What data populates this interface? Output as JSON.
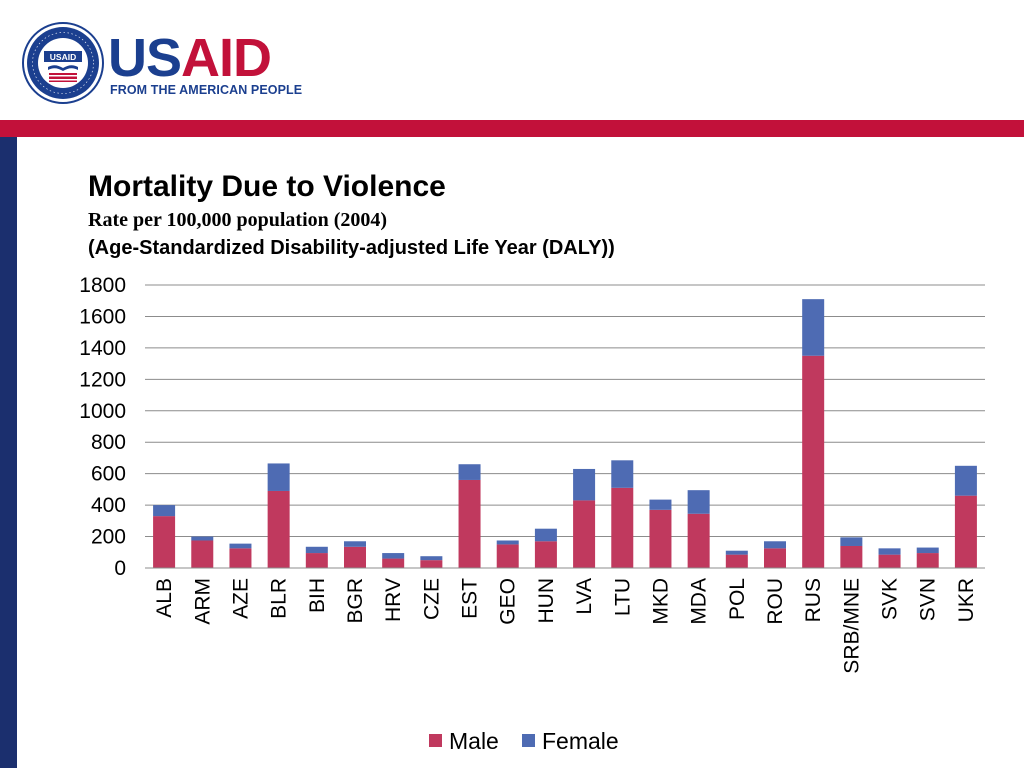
{
  "header": {
    "brand_us": "US",
    "brand_aid": "AID",
    "tagline": "FROM THE AMERICAN PEOPLE",
    "seal_text": "UNITED STATES AGENCY FOR INTERNATIONAL DEVELOPMENT",
    "seal_center": "USAID",
    "colors": {
      "brand_blue": "#1b3f8f",
      "brand_red": "#c2113a",
      "side_bar": "#1b2f6e"
    }
  },
  "chart_data": {
    "type": "bar",
    "stacked": true,
    "title": "Mortality Due to Violence",
    "subtitle": "Rate per 100,000 population (2004)",
    "subtitle2": "(Age-Standardized Disability-adjusted Life Year (DALY))",
    "ylim": [
      0,
      1800
    ],
    "yticks": [
      0,
      200,
      400,
      600,
      800,
      1000,
      1200,
      1400,
      1600,
      1800
    ],
    "grid": true,
    "legend_position": "bottom",
    "categories": [
      "ALB",
      "ARM",
      "AZE",
      "BLR",
      "BIH",
      "BGR",
      "HRV",
      "CZE",
      "EST",
      "GEO",
      "HUN",
      "LVA",
      "LTU",
      "MKD",
      "MDA",
      "POL",
      "ROU",
      "RUS",
      "SRB/MNE",
      "SVK",
      "SVN",
      "UKR"
    ],
    "series": [
      {
        "name": "Male",
        "color": "#c0395e",
        "values": [
          330,
          175,
          125,
          490,
          95,
          135,
          60,
          50,
          560,
          150,
          170,
          430,
          510,
          370,
          345,
          85,
          125,
          1350,
          140,
          85,
          95,
          460
        ]
      },
      {
        "name": "Female",
        "color": "#4e6bb3",
        "values": [
          70,
          25,
          30,
          175,
          40,
          35,
          35,
          25,
          100,
          25,
          80,
          200,
          175,
          65,
          150,
          25,
          45,
          360,
          55,
          40,
          35,
          190
        ]
      }
    ]
  }
}
